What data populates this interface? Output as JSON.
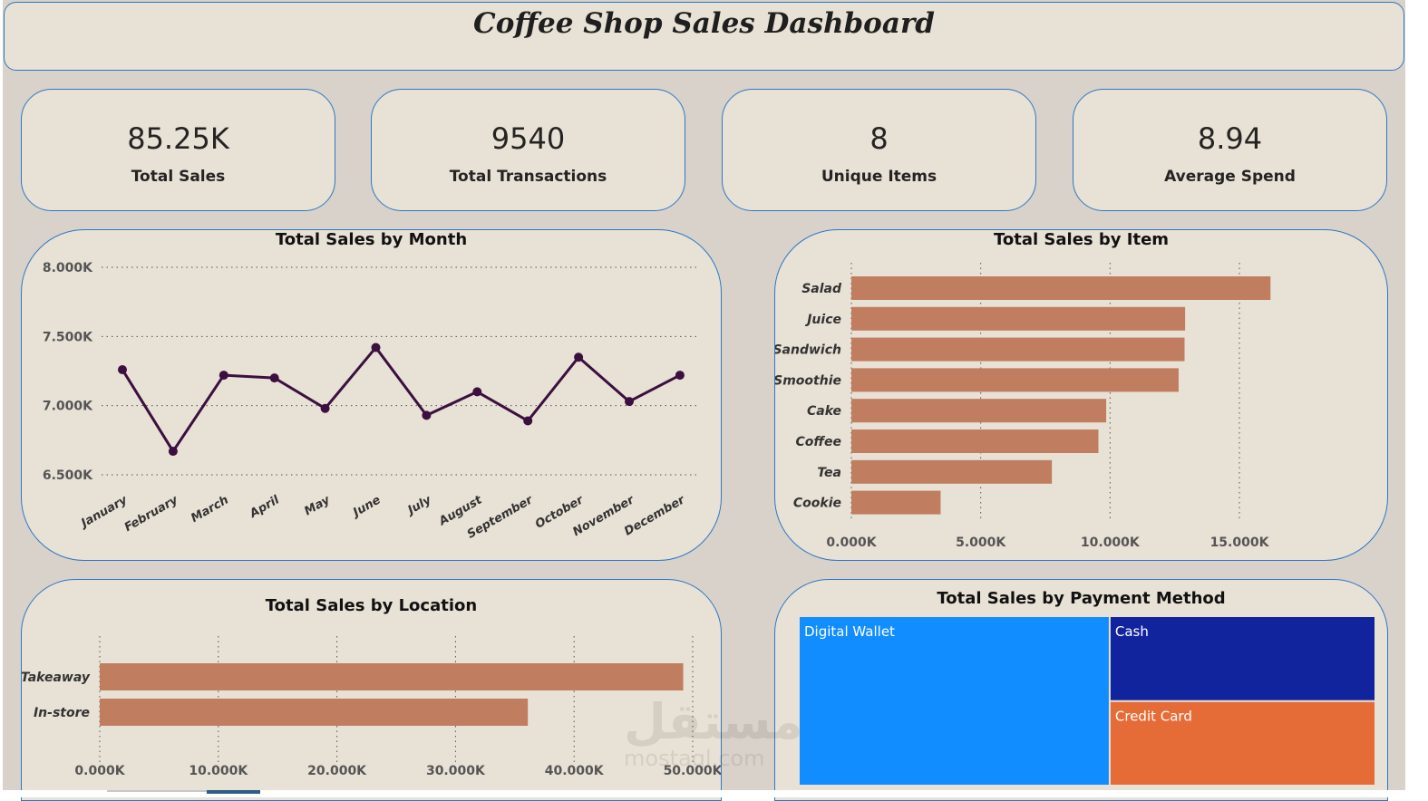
{
  "dashboard": {
    "title": "Coffee Shop Sales Dashboard"
  },
  "kpis": [
    {
      "value": "85.25K",
      "label": "Total Sales"
    },
    {
      "value": "9540",
      "label": "Total Transactions"
    },
    {
      "value": "8",
      "label": "Unique Items"
    },
    {
      "value": "8.94",
      "label": "Average Spend"
    }
  ],
  "colors": {
    "background": "#d8d2ca",
    "panel": "#e8e1d5",
    "panel_border": "#2f78c4",
    "line": "#3b0f3f",
    "bar": "#c07d60",
    "digital_wallet": "#118dff",
    "cash": "#12239e",
    "credit_card": "#e66c37"
  },
  "watermark": {
    "arabic": "مستقل",
    "latin": "mostaql.com"
  },
  "chart_data": [
    {
      "id": "sales_by_month",
      "type": "line",
      "title": "Total Sales by Month",
      "categories": [
        "January",
        "February",
        "March",
        "April",
        "May",
        "June",
        "July",
        "August",
        "September",
        "October",
        "November",
        "December"
      ],
      "values": [
        7260,
        6670,
        7220,
        7200,
        6980,
        7420,
        6930,
        7100,
        6890,
        7350,
        7030,
        7220
      ],
      "ylim": [
        6500,
        8000
      ],
      "yticks": [
        6500,
        7000,
        7500,
        8000
      ],
      "ytick_labels": [
        "6.500K",
        "7.000K",
        "7.500K",
        "8.000K"
      ],
      "grid": true
    },
    {
      "id": "sales_by_item",
      "type": "bar",
      "orientation": "horizontal",
      "title": "Total Sales by Item",
      "categories": [
        "Salad",
        "Juice",
        "Sandwich",
        "Smoothie",
        "Cake",
        "Coffee",
        "Tea",
        "Cookie"
      ],
      "values": [
        16200,
        12900,
        12880,
        12650,
        9850,
        9550,
        7750,
        3450
      ],
      "xlim": [
        0,
        15000
      ],
      "xticks": [
        0,
        5000,
        10000,
        15000
      ],
      "xtick_labels": [
        "0.000K",
        "5.000K",
        "10.000K",
        "15.000K"
      ],
      "grid": true
    },
    {
      "id": "sales_by_location",
      "type": "bar",
      "orientation": "horizontal",
      "title": "Total Sales by Location",
      "categories": [
        "Takeaway",
        "In-store"
      ],
      "values": [
        49200,
        36100
      ],
      "xlim": [
        0,
        50000
      ],
      "xticks": [
        0,
        10000,
        20000,
        30000,
        40000,
        50000
      ],
      "xtick_labels": [
        "0.000K",
        "10.000K",
        "20.000K",
        "30.000K",
        "40.000K",
        "50.000K"
      ],
      "grid": true
    },
    {
      "id": "sales_by_payment",
      "type": "treemap",
      "title": "Total Sales by Payment Method",
      "categories": [
        "Digital Wallet",
        "Cash",
        "Credit Card"
      ],
      "values": [
        46000,
        19700,
        19600
      ]
    }
  ]
}
